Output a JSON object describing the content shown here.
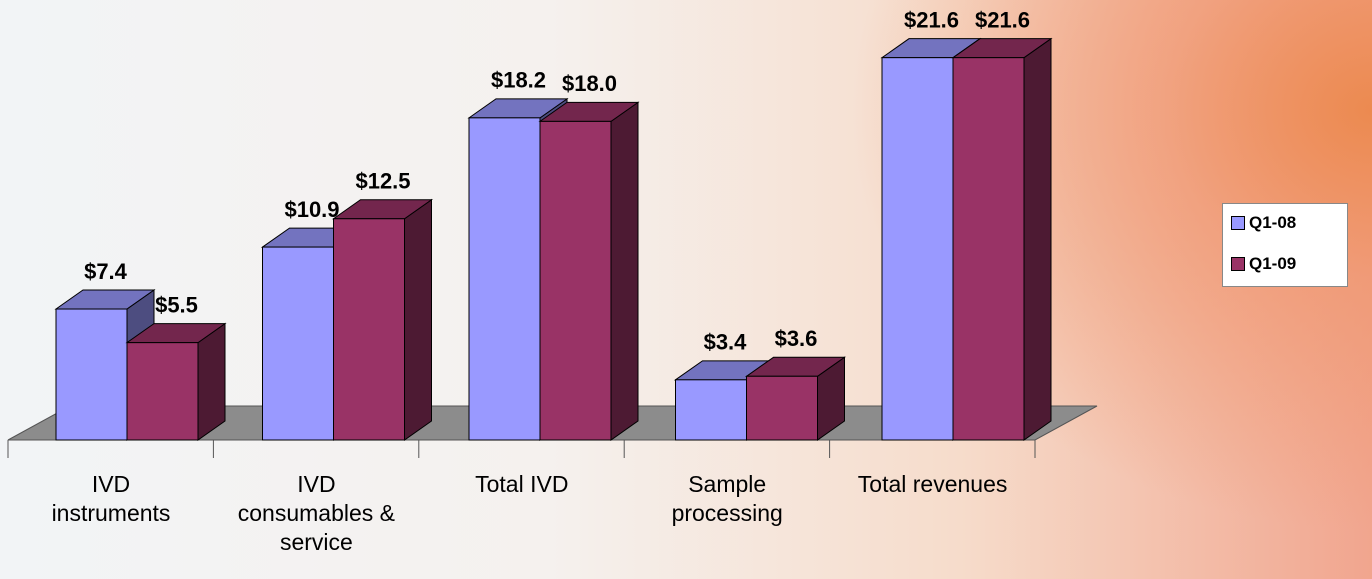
{
  "chart_data": {
    "type": "bar3d",
    "categories": [
      "IVD\ninstruments",
      "IVD\nconsumables &\nservice",
      "Total IVD",
      "Sample\nprocessing",
      "Total revenues"
    ],
    "series": [
      {
        "name": "Q1-08",
        "color": "#9999ff",
        "values": [
          7.4,
          10.9,
          18.2,
          3.4,
          21.6
        ],
        "value_labels": [
          "$7.4",
          "$10.9",
          "$18.2",
          "$3.4",
          "$21.6"
        ]
      },
      {
        "name": "Q1-09",
        "color": "#993366",
        "values": [
          5.5,
          12.5,
          18.0,
          3.6,
          21.6
        ],
        "value_labels": [
          "$5.5",
          "$12.5",
          "$18.0",
          "$3.6",
          "$21.6"
        ]
      }
    ],
    "legend": "right"
  }
}
